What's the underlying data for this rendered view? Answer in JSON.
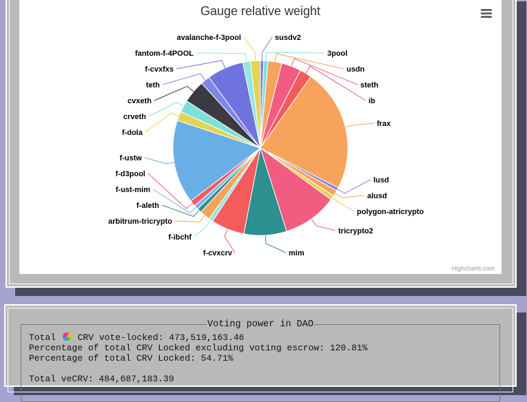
{
  "chart_data": {
    "type": "pie",
    "title": "Gauge relative weight",
    "credit": "Highcharts.com",
    "unit": "percent (estimated)",
    "slices": [
      {
        "name": "susdv2",
        "value": 0.6,
        "color": "#7b7be0"
      },
      {
        "name": "3pool",
        "value": 0.8,
        "color": "#7ee0d8"
      },
      {
        "name": "usdn",
        "value": 2.5,
        "color": "#f7a35c"
      },
      {
        "name": "steth",
        "value": 3.6,
        "color": "#f15c80"
      },
      {
        "name": "ib",
        "value": 2.2,
        "color": "#f45b5b"
      },
      {
        "name": "frax",
        "value": 22.5,
        "color": "#f7a35c"
      },
      {
        "name": "lusd",
        "value": 0.6,
        "color": "#8085e9"
      },
      {
        "name": "alusd",
        "value": 1.1,
        "color": "#f7a35c"
      },
      {
        "name": "polygon-atricrypto",
        "value": 0.8,
        "color": "#e4d354"
      },
      {
        "name": "tricrypto2",
        "value": 10.0,
        "color": "#f15c80"
      },
      {
        "name": "mim",
        "value": 7.8,
        "color": "#2b908f"
      },
      {
        "name": "f-cvxcrv",
        "value": 6.1,
        "color": "#f45b5b"
      },
      {
        "name": "f-ibchf",
        "value": 0.8,
        "color": "#91e8e1"
      },
      {
        "name": "arbitrum-tricrypto",
        "value": 1.9,
        "color": "#f7a35c"
      },
      {
        "name": "f-aleth",
        "value": 0.8,
        "color": "#2b908f"
      },
      {
        "name": "f-ust-mim",
        "value": 0.8,
        "color": "#7cb5ec"
      },
      {
        "name": "f-d3pool",
        "value": 1.1,
        "color": "#f45b5b"
      },
      {
        "name": "f-ustw",
        "value": 15.3,
        "color": "#6aaee8"
      },
      {
        "name": "f-dola",
        "value": 1.7,
        "color": "#e4d354"
      },
      {
        "name": "crveth",
        "value": 2.2,
        "color": "#7ee0d8"
      },
      {
        "name": "cvxeth",
        "value": 4.2,
        "color": "#3a3a40"
      },
      {
        "name": "teth",
        "value": 1.7,
        "color": "#8085e9"
      },
      {
        "name": "f-cvxfxs",
        "value": 6.7,
        "color": "#6f73dd"
      },
      {
        "name": "fantom-f-4POOL",
        "value": 1.4,
        "color": "#91e8e1"
      },
      {
        "name": "avalanche-f-3pool",
        "value": 1.8,
        "color": "#e4d354"
      }
    ]
  },
  "dao": {
    "legend": "Voting power in DAO",
    "line1_prefix": "Total",
    "line1_suffix": "CRV vote-locked: 473,519,163.46",
    "line2": "Percentage of total CRV Locked excluding voting escrow: 120.81%",
    "line3": "Percentage of total CRV Locked: 54.71%",
    "line4": "Total veCRV: 484,687,183.39"
  }
}
